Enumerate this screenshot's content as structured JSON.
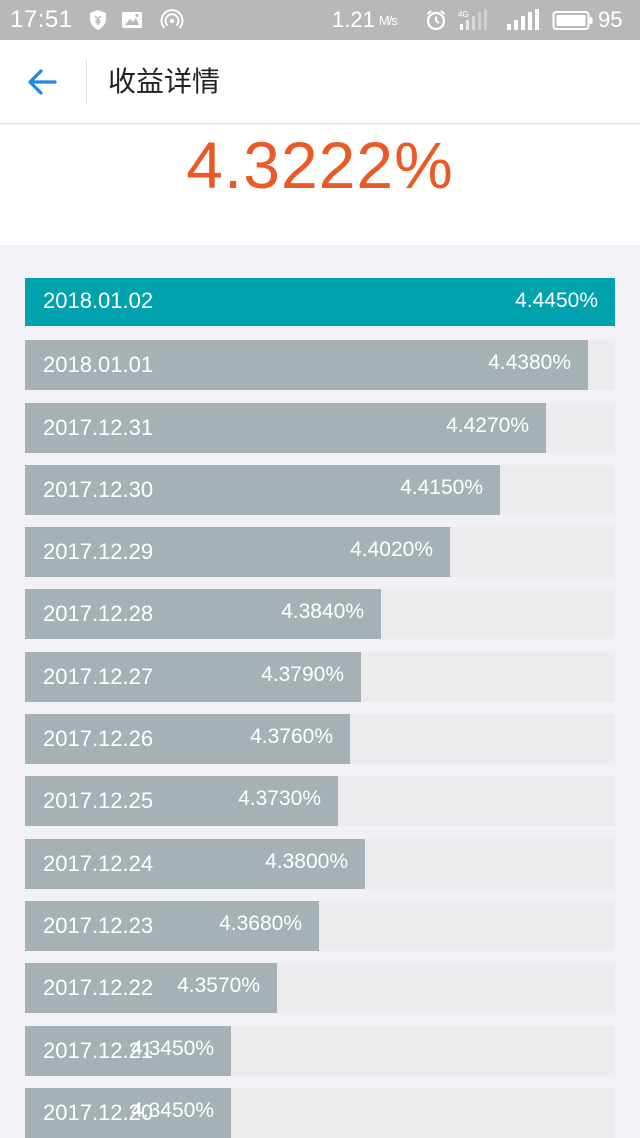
{
  "status_bar": {
    "time": "17:51",
    "net_speed": "1.21",
    "net_unit": "M/s",
    "network": "4G",
    "battery": "95"
  },
  "header": {
    "title": "收益详情"
  },
  "summary": {
    "rate": "4.3222%"
  },
  "colors": {
    "accent_orange": "#ea5a25",
    "active_teal": "#00a3ad",
    "bar_gray": "#a5b1b5",
    "track": "#ececee"
  },
  "chart_data": {
    "type": "bar",
    "orientation": "horizontal",
    "categories": [
      "2018.01.02",
      "2018.01.01",
      "2017.12.31",
      "2017.12.30",
      "2017.12.29",
      "2017.12.28",
      "2017.12.27",
      "2017.12.26",
      "2017.12.25",
      "2017.12.24",
      "2017.12.23",
      "2017.12.22",
      "2017.12.21",
      "2017.12.20"
    ],
    "values": [
      4.445,
      4.438,
      4.427,
      4.415,
      4.402,
      4.384,
      4.379,
      4.376,
      4.373,
      4.38,
      4.368,
      4.357,
      4.345,
      4.345
    ],
    "labels": [
      "4.4450%",
      "4.4380%",
      "4.4270%",
      "4.4150%",
      "4.4020%",
      "4.3840%",
      "4.3790%",
      "4.3760%",
      "4.3730%",
      "4.3800%",
      "4.3680%",
      "4.3570%",
      "4.3450%",
      "4.3450%"
    ],
    "selected_index": 0
  }
}
